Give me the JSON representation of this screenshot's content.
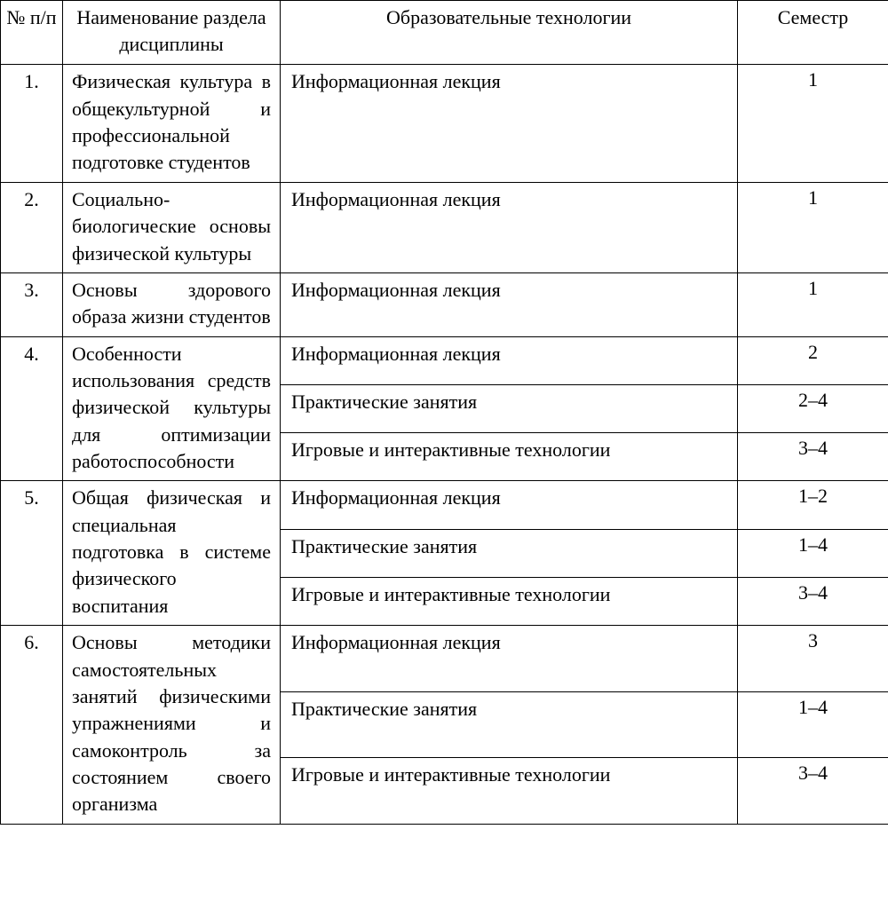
{
  "header": {
    "num": "№ п/п",
    "name": "Наименование раздела дисциплины",
    "tech": "Образовательные технологии",
    "sem": "Семестр"
  },
  "rows": [
    {
      "num": "1.",
      "name": "Физическая культура в общекультурной и профессиональной подготовке студентов",
      "sub": [
        {
          "tech": "Информационная лекция",
          "sem": "1"
        }
      ]
    },
    {
      "num": "2.",
      "name": "Социально-биологические основы физической культуры",
      "sub": [
        {
          "tech": "Информационная лекция",
          "sem": "1"
        }
      ]
    },
    {
      "num": "3.",
      "name": "Основы здорового образа жизни студентов",
      "sub": [
        {
          "tech": "Информационная лекция",
          "sem": "1"
        }
      ]
    },
    {
      "num": "4.",
      "name": "Особенности использования средств физической культуры для оптимизации работоспособности",
      "sub": [
        {
          "tech": "Информационная лекция",
          "sem": "2"
        },
        {
          "tech": "Практические занятия",
          "sem": "2–4"
        },
        {
          "tech": "Игровые и интерактивные технологии",
          "sem": "3–4"
        }
      ]
    },
    {
      "num": "5.",
      "name": "Общая физическая и специальная подготовка в системе физического воспитания",
      "sub": [
        {
          "tech": "Информационная лекция",
          "sem": "1–2"
        },
        {
          "tech": "Практические занятия",
          "sem": "1–4"
        },
        {
          "tech": "Игровые и интерактивные технологии",
          "sem": "3–4"
        }
      ]
    },
    {
      "num": "6.",
      "name": "Основы методики самостоятельных занятий физическими упражнениями и самоконтроль за состоянием своего организма",
      "sub": [
        {
          "tech": "Информационная лекция",
          "sem": "3"
        },
        {
          "tech": "Практические занятия",
          "sem": "1–4"
        },
        {
          "tech": "Игровые и интерактивные технологии",
          "sem": "3–4"
        }
      ]
    }
  ]
}
